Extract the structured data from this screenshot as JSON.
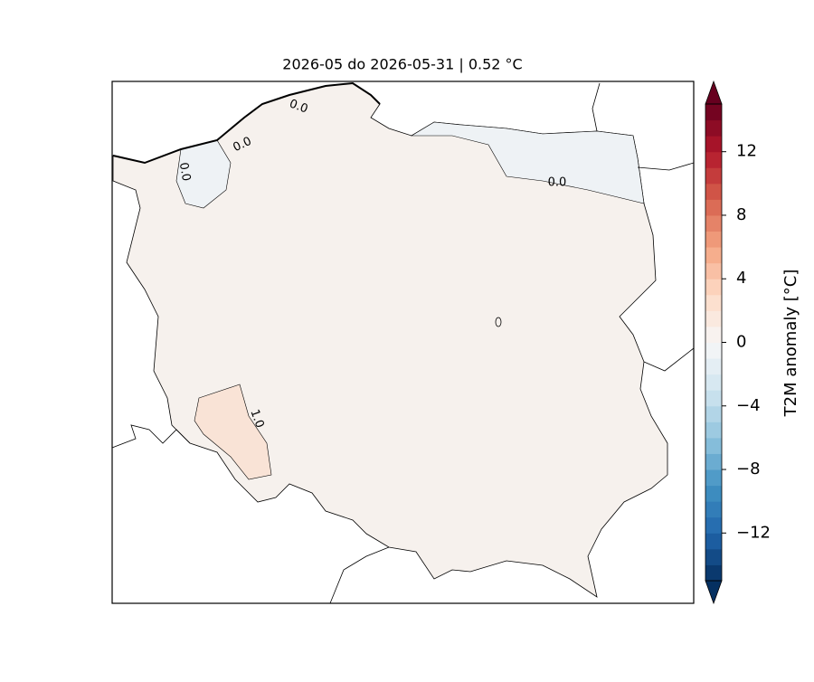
{
  "title": "2026-05 do 2026-05-31 | 0.52 °C",
  "contour_labels": [
    "0.0",
    "0.0",
    "0.0",
    "0.0",
    "1.0"
  ],
  "colorbar": {
    "label": "T2M anomaly [°C]",
    "lim": [
      -15,
      15
    ],
    "levels": 30,
    "extend": "both",
    "ticks": [
      {
        "value": -12,
        "label": "−12"
      },
      {
        "value": -8,
        "label": "−8"
      },
      {
        "value": -4,
        "label": "−4"
      },
      0,
      4,
      8,
      12
    ]
  }
}
